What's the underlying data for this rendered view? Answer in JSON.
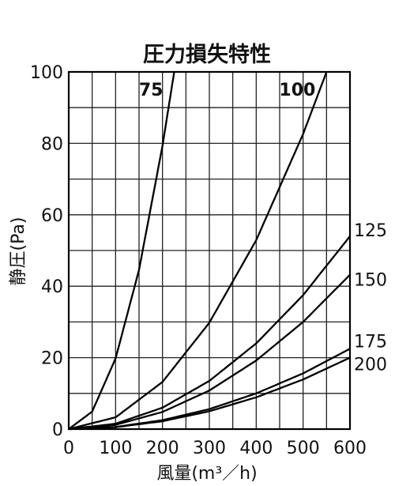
{
  "chart_data": {
    "type": "line",
    "title": "圧力損失特性",
    "xlabel": "風量(m³／h)",
    "ylabel": "静圧(Pa)",
    "xlim": [
      0,
      600
    ],
    "ylim": [
      0,
      100
    ],
    "x_ticks": [
      "0",
      "100",
      "200",
      "300",
      "400",
      "500",
      "600"
    ],
    "y_ticks": [
      "0",
      "20",
      "40",
      "60",
      "80",
      "100"
    ],
    "grid": true,
    "series": [
      {
        "name": "75",
        "x": [
          0,
          50,
          100,
          150,
          200,
          225
        ],
        "y": [
          0,
          4.9,
          19.8,
          44.6,
          79.3,
          100
        ]
      },
      {
        "name": "100",
        "x": [
          0,
          100,
          200,
          300,
          400,
          500,
          550
        ],
        "y": [
          0,
          3.3,
          13.2,
          29.8,
          52.9,
          82.6,
          100
        ]
      },
      {
        "name": "125",
        "x": [
          0,
          100,
          200,
          300,
          400,
          500,
          600
        ],
        "y": [
          0,
          1.5,
          6,
          13.5,
          24,
          37.5,
          54
        ]
      },
      {
        "name": "150",
        "x": [
          0,
          100,
          200,
          300,
          400,
          500,
          600
        ],
        "y": [
          0,
          1.2,
          4.8,
          10.8,
          19.2,
          30,
          43.2
        ]
      },
      {
        "name": "175",
        "x": [
          0,
          100,
          200,
          300,
          400,
          500,
          600
        ],
        "y": [
          0,
          0.6,
          2.5,
          5.6,
          10,
          15.6,
          22.5
        ]
      },
      {
        "name": "200",
        "x": [
          0,
          100,
          200,
          300,
          400,
          500,
          600
        ],
        "y": [
          0,
          0.55,
          2.2,
          5,
          8.9,
          13.9,
          20
        ]
      }
    ]
  }
}
